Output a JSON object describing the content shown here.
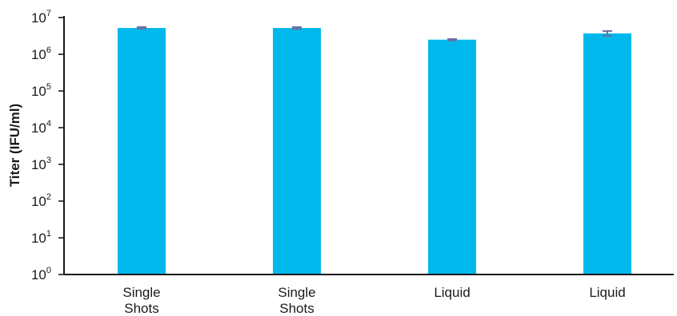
{
  "chart_data": {
    "type": "bar",
    "title": "",
    "xlabel": "",
    "ylabel": "Titer (IFU/ml)",
    "yscale": "log",
    "ylim": [
      1,
      10000000
    ],
    "y_ticks": [
      {
        "base": "10",
        "exp": "0"
      },
      {
        "base": "10",
        "exp": "1"
      },
      {
        "base": "10",
        "exp": "2"
      },
      {
        "base": "10",
        "exp": "3"
      },
      {
        "base": "10",
        "exp": "4"
      },
      {
        "base": "10",
        "exp": "5"
      },
      {
        "base": "10",
        "exp": "6"
      },
      {
        "base": "10",
        "exp": "7"
      }
    ],
    "categories": [
      [
        "Single",
        "Shots"
      ],
      [
        "Single",
        "Shots"
      ],
      [
        "Liquid"
      ],
      [
        "Liquid"
      ]
    ],
    "values": [
      5200000,
      5200000,
      2500000,
      3700000
    ],
    "error_bars": [
      [
        5000000,
        5500000
      ],
      [
        4900000,
        5500000
      ],
      [
        2400000,
        2600000
      ],
      [
        3200000,
        4300000
      ]
    ],
    "grid": false,
    "legend": "none",
    "colors": {
      "bar": "#00b8ec",
      "error_bar": "#6a6f9c",
      "axis": "#1a1a1a"
    }
  }
}
